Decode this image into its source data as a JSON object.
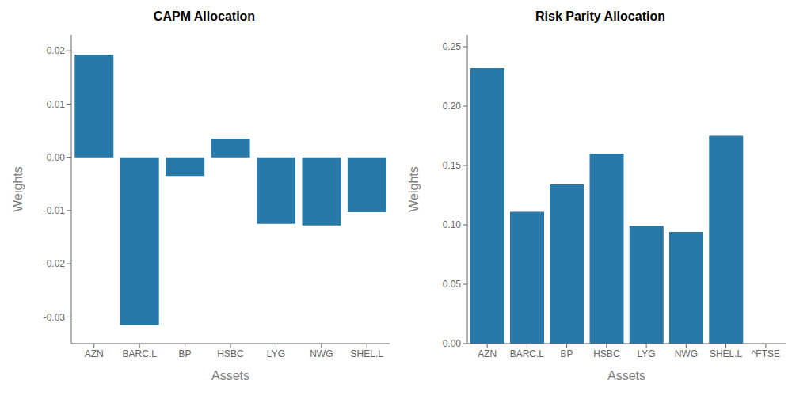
{
  "chart_data": [
    {
      "type": "bar",
      "title": "CAPM Allocation",
      "xlabel": "Assets",
      "ylabel": "Weights",
      "categories": [
        "AZN",
        "BARC.L",
        "BP",
        "HSBC",
        "LYG",
        "NWG",
        "SHEL.L"
      ],
      "values": [
        0.0193,
        -0.0315,
        -0.0035,
        0.0035,
        -0.0125,
        -0.0128,
        -0.0103
      ],
      "color": "#2878a8",
      "ylim": [
        -0.035,
        0.023
      ],
      "yticks": [
        -0.03,
        -0.02,
        -0.01,
        {
          "value": 0,
          "label": "0.00"
        },
        0.01,
        0.02
      ],
      "grid": false
    },
    {
      "type": "bar",
      "title": "Risk Parity Allocation",
      "xlabel": "Assets",
      "ylabel": "Weights",
      "categories": [
        "AZN",
        "BARC.L",
        "BP",
        "HSBC",
        "LYG",
        "NWG",
        "SHEL.L",
        "^FTSE"
      ],
      "values": [
        0.232,
        0.111,
        0.134,
        0.16,
        0.099,
        0.094,
        0.175,
        0.0
      ],
      "color": "#2878a8",
      "ylim": [
        0.0,
        0.26
      ],
      "yticks": [
        {
          "value": 0,
          "label": "0.00"
        },
        0.05,
        {
          "value": 0.1,
          "label": "0.10"
        },
        0.15,
        {
          "value": 0.2,
          "label": "0.20"
        },
        0.25
      ],
      "grid": false
    }
  ]
}
